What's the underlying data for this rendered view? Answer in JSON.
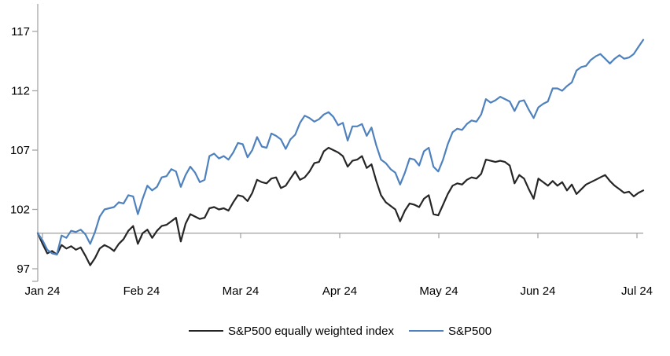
{
  "chart_data": {
    "type": "line",
    "title": "",
    "x_tick_labels": [
      "Jan 24",
      "Feb 24",
      "Mar 24",
      "Apr 24",
      "May 24",
      "Jun 24",
      "Jul 24"
    ],
    "y_ticks": [
      97,
      102,
      107,
      112,
      117
    ],
    "ylim": [
      95.9,
      119.3
    ],
    "baseline_value": 100,
    "grid": "single horizontal gray line at 100 only",
    "legend_position": "bottom-center",
    "x_description": "daily values indexed to 100 at start of Jan 24",
    "series": [
      {
        "name": "S&P500 equally weighted index",
        "color": "#262626",
        "values": [
          100.0,
          99.1,
          98.3,
          98.5,
          98.2,
          99.0,
          98.7,
          98.9,
          98.6,
          98.8,
          98.1,
          97.3,
          97.9,
          98.7,
          99.0,
          98.8,
          98.5,
          99.1,
          99.5,
          100.2,
          100.6,
          99.1,
          100.0,
          100.3,
          99.6,
          100.2,
          100.6,
          100.7,
          101.0,
          101.3,
          99.3,
          100.8,
          101.6,
          101.4,
          101.2,
          101.3,
          102.1,
          102.2,
          102.0,
          102.1,
          101.9,
          102.6,
          103.2,
          103.1,
          102.7,
          103.4,
          104.5,
          104.3,
          104.2,
          104.6,
          104.7,
          103.8,
          104.0,
          104.6,
          105.2,
          104.5,
          104.7,
          105.2,
          105.9,
          106.0,
          106.9,
          107.2,
          107.0,
          106.8,
          106.5,
          105.6,
          106.1,
          106.2,
          106.5,
          105.5,
          105.8,
          104.4,
          103.2,
          102.6,
          102.3,
          102.0,
          101.0,
          101.9,
          102.5,
          102.4,
          102.2,
          102.9,
          103.2,
          101.6,
          101.5,
          102.4,
          103.3,
          104.0,
          104.2,
          104.1,
          104.5,
          104.7,
          104.6,
          105.0,
          106.2,
          106.1,
          106.0,
          106.1,
          106.0,
          105.7,
          104.2,
          104.9,
          104.6,
          103.7,
          102.9,
          104.6,
          104.3,
          104.0,
          104.4,
          104.0,
          104.3,
          103.6,
          104.1,
          103.3,
          103.7,
          104.1,
          104.3,
          104.5,
          104.7,
          104.9,
          104.4,
          104.0,
          103.7,
          103.4,
          103.5,
          103.1,
          103.4,
          103.6
        ]
      },
      {
        "name": "S&P500",
        "color": "#4E81BD",
        "values": [
          100.0,
          99.4,
          98.6,
          98.3,
          98.2,
          99.8,
          99.6,
          100.2,
          100.1,
          100.3,
          99.9,
          99.1,
          100.1,
          101.4,
          102.0,
          102.1,
          102.2,
          102.6,
          102.5,
          103.2,
          103.1,
          101.6,
          102.9,
          104.0,
          103.6,
          103.9,
          104.7,
          104.8,
          105.4,
          105.2,
          103.9,
          104.9,
          105.6,
          105.1,
          104.3,
          104.5,
          106.5,
          106.7,
          106.3,
          106.5,
          106.2,
          106.8,
          107.6,
          107.5,
          106.4,
          107.0,
          108.1,
          107.3,
          107.2,
          108.4,
          108.2,
          107.9,
          107.1,
          107.9,
          108.3,
          109.3,
          109.9,
          109.7,
          109.4,
          109.6,
          110.0,
          110.2,
          109.8,
          109.1,
          109.3,
          107.8,
          109.0,
          109.0,
          109.2,
          108.2,
          108.9,
          107.4,
          106.2,
          105.9,
          105.4,
          105.1,
          104.1,
          105.1,
          106.3,
          106.2,
          105.7,
          106.9,
          107.2,
          105.6,
          105.2,
          106.2,
          107.5,
          108.5,
          108.8,
          108.7,
          109.2,
          109.5,
          109.4,
          110.0,
          111.3,
          111.0,
          111.2,
          111.5,
          111.3,
          111.1,
          110.3,
          111.1,
          111.2,
          110.4,
          109.7,
          110.6,
          110.9,
          111.1,
          112.2,
          112.2,
          112.0,
          112.4,
          112.7,
          113.7,
          114.0,
          114.1,
          114.6,
          114.9,
          115.1,
          114.7,
          114.3,
          114.7,
          115.0,
          114.7,
          114.8,
          115.1,
          115.7,
          116.3
        ]
      }
    ]
  },
  "legend": {
    "items": [
      {
        "label": "S&P500 equally weighted index",
        "color": "#262626"
      },
      {
        "label": "S&P500",
        "color": "#4E81BD"
      }
    ]
  },
  "colors": {
    "axis": "#A6A6A6",
    "baseline": "#A6A6A6",
    "text": "#000000",
    "background": "#FFFFFF"
  }
}
